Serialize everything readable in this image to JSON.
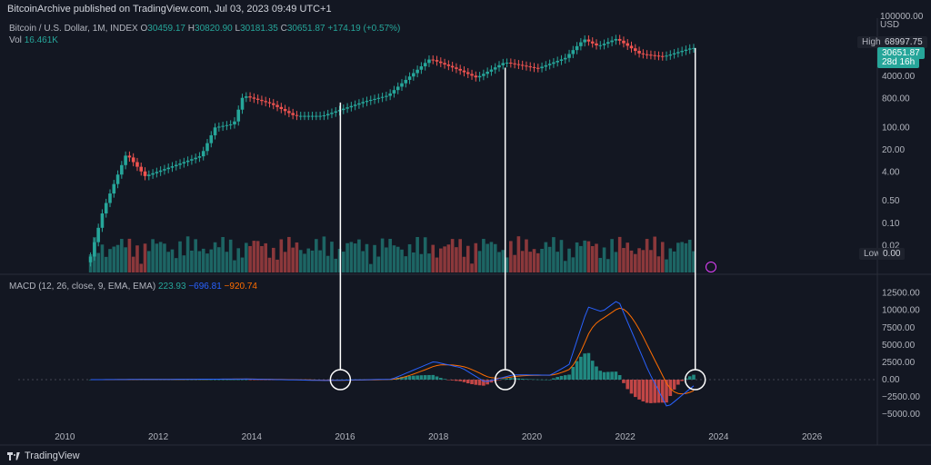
{
  "header": {
    "publisher": "BitcoinArchive published on TradingView.com, Jul 03, 2023 09:49 UTC+1"
  },
  "legend": {
    "symbol": "Bitcoin / U.S. Dollar, 1M, INDEX",
    "o_label": "O",
    "o": "30459.17",
    "h_label": "H",
    "h": "30820.90",
    "l_label": "L",
    "l": "30181.35",
    "c_label": "C",
    "c": "30651.87",
    "chg": "+174.19 (+0.57%)",
    "vol_label": "Vol",
    "vol": "16.461K",
    "macd_label": "MACD (12, 26, close, 9, EMA, EMA)",
    "macd_hist": "223.93",
    "macd_line": "−696.81",
    "macd_signal": "−920.74"
  },
  "price_axis": {
    "unit": "USD",
    "top_tick": "100000.00",
    "ticks": [
      "4000.00",
      "800.00",
      "100.00",
      "20.00",
      "4.00",
      "0.50",
      "0.10",
      "0.02"
    ],
    "high_label": "High",
    "high_value": "68997.75",
    "last_value": "30651.87",
    "countdown": "28d 16h",
    "low_label": "Low",
    "low_value": "0.00"
  },
  "macd_axis": {
    "ticks": [
      "12500.00",
      "10000.00",
      "7500.00",
      "5000.00",
      "2500.00",
      "0.00",
      "−2500.00",
      "−5000.00"
    ]
  },
  "time_axis": {
    "ticks": [
      "2010",
      "2012",
      "2014",
      "2016",
      "2018",
      "2020",
      "2022",
      "2024",
      "2026"
    ]
  },
  "footer": {
    "brand": "TradingView"
  },
  "colors": {
    "up": "#26a69a",
    "down": "#ef5350",
    "macd": "#2962ff",
    "signal": "#ff6d00",
    "bg": "#131722",
    "annotation": "#ffffff"
  },
  "chart_data": {
    "type": "candlestick",
    "x_range": [
      2009.0,
      2027.4
    ],
    "price_scale": "log",
    "price_range": [
      0.004,
      120000
    ],
    "price_anchors": [
      {
        "t": 2010.6,
        "p": 0.006
      },
      {
        "t": 2010.9,
        "p": 0.25
      },
      {
        "t": 2011.4,
        "p": 15
      },
      {
        "t": 2011.8,
        "p": 3
      },
      {
        "t": 2012.5,
        "p": 7
      },
      {
        "t": 2013.0,
        "p": 13
      },
      {
        "t": 2013.3,
        "p": 100
      },
      {
        "t": 2013.7,
        "p": 130
      },
      {
        "t": 2013.9,
        "p": 1000
      },
      {
        "t": 2014.5,
        "p": 550
      },
      {
        "t": 2015.0,
        "p": 230
      },
      {
        "t": 2015.6,
        "p": 230
      },
      {
        "t": 2016.5,
        "p": 650
      },
      {
        "t": 2017.0,
        "p": 1000
      },
      {
        "t": 2017.9,
        "p": 14000
      },
      {
        "t": 2018.5,
        "p": 6500
      },
      {
        "t": 2018.9,
        "p": 3600
      },
      {
        "t": 2019.5,
        "p": 11000
      },
      {
        "t": 2020.2,
        "p": 7000
      },
      {
        "t": 2020.8,
        "p": 15000
      },
      {
        "t": 2021.2,
        "p": 58000
      },
      {
        "t": 2021.5,
        "p": 35000
      },
      {
        "t": 2021.9,
        "p": 60000
      },
      {
        "t": 2022.4,
        "p": 20000
      },
      {
        "t": 2022.9,
        "p": 16500
      },
      {
        "t": 2023.5,
        "p": 30600
      }
    ],
    "macd_range": [
      -5500,
      13500
    ],
    "macd_anchors": [
      {
        "t": 2010.5,
        "m": 0
      },
      {
        "t": 2013.9,
        "m": 90
      },
      {
        "t": 2015.6,
        "m": -120
      },
      {
        "t": 2017.0,
        "m": 60
      },
      {
        "t": 2017.9,
        "m": 2600
      },
      {
        "t": 2018.5,
        "m": 1700
      },
      {
        "t": 2019.0,
        "m": -350
      },
      {
        "t": 2019.6,
        "m": 700
      },
      {
        "t": 2020.4,
        "m": 650
      },
      {
        "t": 2020.8,
        "m": 2200
      },
      {
        "t": 2021.2,
        "m": 10500
      },
      {
        "t": 2021.5,
        "m": 9800
      },
      {
        "t": 2021.85,
        "m": 11500
      },
      {
        "t": 2022.5,
        "m": 1200
      },
      {
        "t": 2022.9,
        "m": -4000
      },
      {
        "t": 2023.5,
        "m": -700
      }
    ],
    "annotations": [
      {
        "t": 2015.9,
        "price": 600
      },
      {
        "t": 2019.43,
        "price": 7400
      },
      {
        "t": 2023.5,
        "price": 30651
      }
    ]
  }
}
